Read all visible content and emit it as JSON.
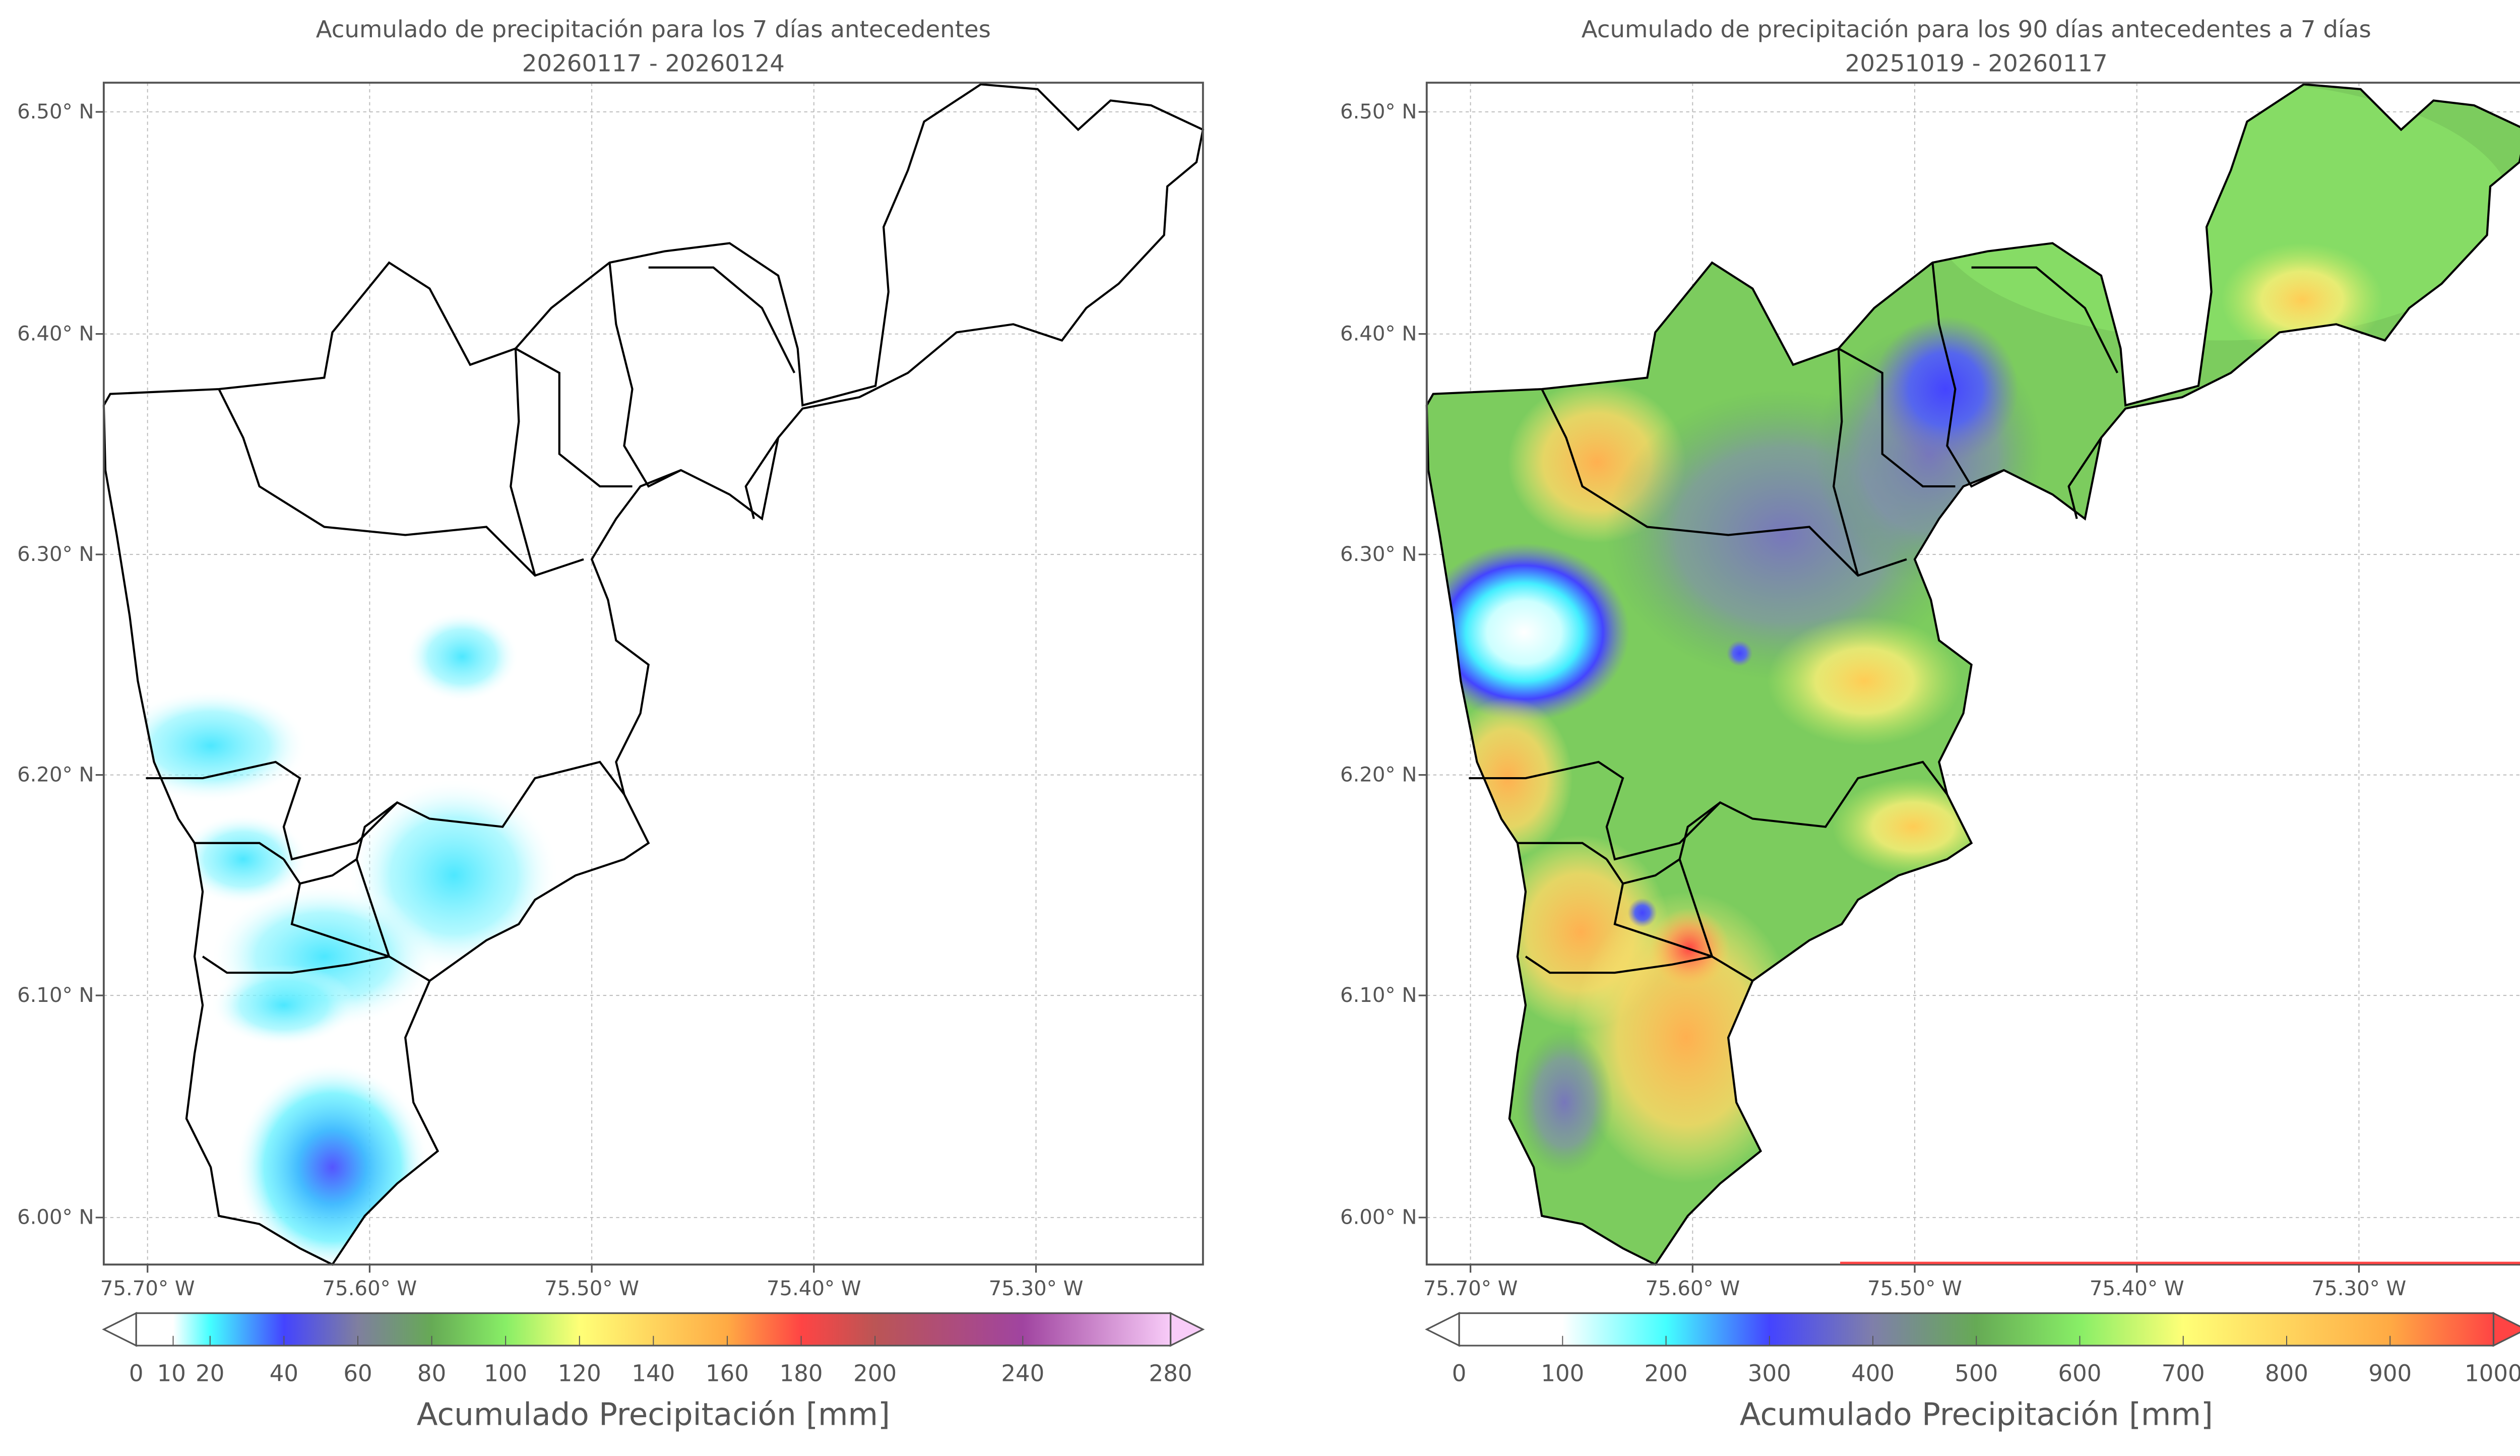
{
  "chart_data": [
    {
      "type": "heatmap",
      "title_line1": "Acumulado de precipitación para los 7 días antecedentes",
      "title_line2": "20260117 - 20260124",
      "x_ticks": [
        "75.70° W",
        "75.60° W",
        "75.50° W",
        "75.40° W",
        "75.30° W"
      ],
      "y_ticks": [
        "6.50° N",
        "6.40° N",
        "6.30° N",
        "6.20° N",
        "6.10° N",
        "6.00° N"
      ],
      "xlim": [
        -75.72,
        -75.225
      ],
      "ylim": [
        5.978,
        6.513
      ],
      "grid": true,
      "colorbar": {
        "label": "Acumulado Precipitación [mm]",
        "ticks": [
          "0",
          "10",
          "20",
          "40",
          "60",
          "80",
          "100",
          "120",
          "140",
          "160",
          "180",
          "200",
          "240",
          "280"
        ],
        "tick_values": [
          0,
          10,
          20,
          40,
          60,
          80,
          100,
          120,
          140,
          160,
          180,
          200,
          240,
          280
        ],
        "range": [
          0,
          280
        ],
        "extend": "both",
        "stops": [
          [
            0,
            "#ffffff"
          ],
          [
            10,
            "#ffffff"
          ],
          [
            20,
            "#44ffff"
          ],
          [
            40,
            "#4444ff"
          ],
          [
            60,
            "#7f7f9f"
          ],
          [
            80,
            "#66aa55"
          ],
          [
            100,
            "#88ee66"
          ],
          [
            120,
            "#ffff77"
          ],
          [
            160,
            "#ffaa44"
          ],
          [
            180,
            "#ff4444"
          ],
          [
            200,
            "#bb5555"
          ],
          [
            240,
            "#a044a0"
          ],
          [
            280,
            "#f8ccf8"
          ]
        ]
      }
    },
    {
      "type": "heatmap",
      "title_line1": "Acumulado de precipitación para los 90 días antecedentes a 7 días",
      "title_line2": "20251019 - 20260117",
      "x_ticks": [
        "75.70° W",
        "75.60° W",
        "75.50° W",
        "75.40° W",
        "75.30° W"
      ],
      "y_ticks": [
        "6.50° N",
        "6.40° N",
        "6.30° N",
        "6.20° N",
        "6.10° N",
        "6.00° N"
      ],
      "xlim": [
        -75.72,
        -75.225
      ],
      "ylim": [
        5.978,
        6.513
      ],
      "grid": true,
      "colorbar": {
        "label": "Acumulado Precipitación [mm]",
        "ticks": [
          "0",
          "100",
          "200",
          "300",
          "400",
          "500",
          "600",
          "700",
          "800",
          "900",
          "1000"
        ],
        "tick_values": [
          0,
          100,
          200,
          300,
          400,
          500,
          600,
          700,
          800,
          900,
          1000
        ],
        "range": [
          0,
          1000
        ],
        "extend": "both",
        "stops": [
          [
            0,
            "#ffffff"
          ],
          [
            100,
            "#ffffff"
          ],
          [
            200,
            "#44ffff"
          ],
          [
            300,
            "#4444ff"
          ],
          [
            400,
            "#7f7faa"
          ],
          [
            500,
            "#66aa55"
          ],
          [
            600,
            "#88ee66"
          ],
          [
            700,
            "#ffff77"
          ],
          [
            900,
            "#ffaa44"
          ],
          [
            1000,
            "#ff4444"
          ]
        ]
      }
    }
  ]
}
